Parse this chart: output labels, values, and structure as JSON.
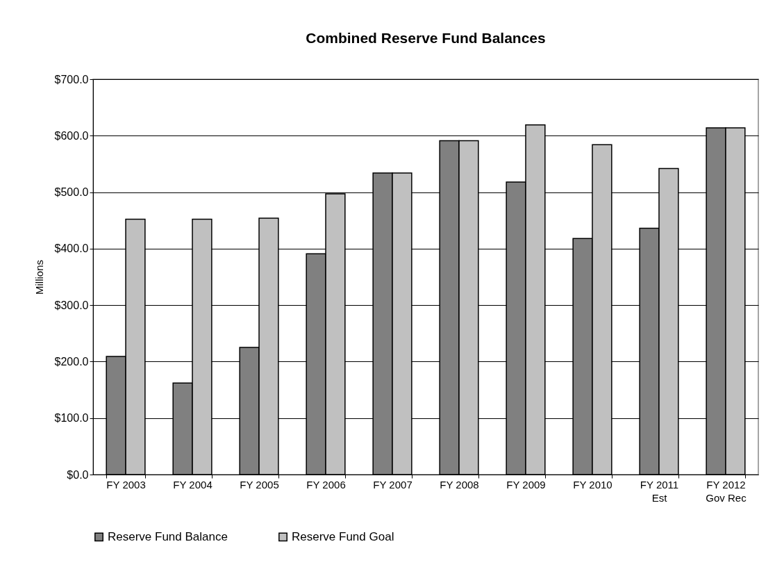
{
  "chart_data": {
    "type": "bar",
    "title": "Combined Reserve Fund Balances",
    "ylabel": "Millions",
    "categories": [
      "FY 2003",
      "FY 2004",
      "FY 2005",
      "FY 2006",
      "FY 2007",
      "FY 2008",
      "FY 2009",
      "FY 2010",
      "FY 2011\nEst",
      "FY 2012\nGov Rec"
    ],
    "series": [
      {
        "name": "Reserve Fund Balance",
        "color": "#808080",
        "values": [
          209,
          162,
          225,
          391,
          534,
          591,
          518,
          418,
          436,
          614
        ]
      },
      {
        "name": "Reserve Fund Goal",
        "color": "#c0c0c0",
        "values": [
          452,
          452,
          454,
          497,
          534,
          591,
          619,
          584,
          542,
          614
        ]
      }
    ],
    "ylim": [
      0,
      700
    ],
    "yticks": [
      {
        "value": 0,
        "label": "$0.0"
      },
      {
        "value": 100,
        "label": "$100.0"
      },
      {
        "value": 200,
        "label": "$200.0"
      },
      {
        "value": 300,
        "label": "$300.0"
      },
      {
        "value": 400,
        "label": "$400.0"
      },
      {
        "value": 500,
        "label": "$500.0"
      },
      {
        "value": 600,
        "label": "$600.0"
      },
      {
        "value": 700,
        "label": "$700.0"
      }
    ],
    "grid": "y",
    "legend": "bottom"
  }
}
